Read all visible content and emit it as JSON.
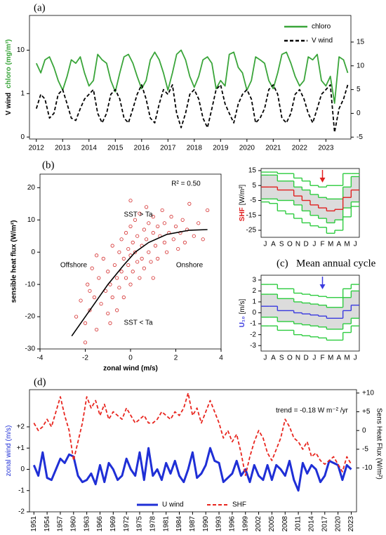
{
  "chart_data": [
    {
      "type": "line",
      "panel_label": "(a)",
      "ylabel": [
        "V wind",
        "chloro (mg/m³)"
      ],
      "ylog": true,
      "legend": "upper right",
      "x": [
        2012,
        2012.17,
        2012.33,
        2012.5,
        2012.67,
        2012.83,
        2013,
        2013.17,
        2013.33,
        2013.5,
        2013.67,
        2013.83,
        2014,
        2014.17,
        2014.33,
        2014.5,
        2014.67,
        2014.83,
        2015,
        2015.17,
        2015.33,
        2015.5,
        2015.67,
        2015.83,
        2016,
        2016.17,
        2016.33,
        2016.5,
        2016.67,
        2016.83,
        2017,
        2017.17,
        2017.33,
        2017.5,
        2017.67,
        2017.83,
        2018,
        2018.17,
        2018.33,
        2018.5,
        2018.67,
        2018.83,
        2019,
        2019.17,
        2019.33,
        2019.5,
        2019.67,
        2019.83,
        2020,
        2020.17,
        2020.33,
        2020.5,
        2020.67,
        2020.83,
        2021,
        2021.17,
        2021.33,
        2021.5,
        2021.67,
        2021.83,
        2022,
        2022.17,
        2022.33,
        2022.5,
        2022.67,
        2022.83,
        2023,
        2023.17,
        2023.33,
        2023.5,
        2023.67,
        2023.83
      ],
      "xlim": [
        2011.74,
        2023.95
      ],
      "xticks": [
        2012,
        2013,
        2014,
        2015,
        2016,
        2017,
        2018,
        2019,
        2020,
        2021,
        2022,
        2023
      ],
      "ylim": [
        0.09,
        63
      ],
      "yticks": [
        {
          "value": 0.1,
          "label": "0"
        },
        1,
        10
      ],
      "y2lim": [
        -5.4,
        20.6
      ],
      "y2ticks": [
        -5,
        0,
        5,
        10,
        15
      ],
      "series": [
        {
          "name": "chloro",
          "color": "#3aa53a",
          "values": [
            5,
            3,
            6,
            7,
            4,
            2,
            1.2,
            2.5,
            6,
            5,
            7,
            3,
            1.5,
            2,
            8,
            6,
            5,
            2,
            1.1,
            3,
            7,
            8,
            5,
            2.5,
            1.3,
            2,
            6,
            9,
            6,
            3,
            1.2,
            3,
            8,
            10,
            6,
            2.5,
            1.4,
            2.5,
            6,
            7,
            5,
            1.3,
            2,
            1.5,
            8,
            9,
            4,
            3,
            1.2,
            2,
            7,
            6,
            5,
            2,
            1.3,
            3,
            8,
            9,
            5,
            2.5,
            1.5,
            2,
            7,
            6,
            8,
            2,
            1.5,
            2.5,
            0.6,
            7,
            6,
            3
          ]
        },
        {
          "name": "V wind",
          "color": "#000000",
          "dashed": true,
          "axis": "y2",
          "values": [
            1,
            4,
            3,
            -1,
            0,
            4,
            5,
            2,
            -1,
            -1.5,
            1,
            3,
            4,
            5,
            0,
            -2,
            0,
            4,
            5,
            3,
            -1,
            -2,
            1,
            4,
            6,
            3,
            -1,
            -2,
            2,
            5,
            4,
            6,
            0,
            -3,
            0,
            4,
            5,
            3,
            -1,
            -3,
            1,
            5,
            6,
            2,
            0,
            -2,
            2,
            4,
            5,
            3,
            -2,
            -1,
            1,
            5,
            6,
            4,
            -1,
            -2,
            0,
            4,
            5,
            3,
            0,
            -2,
            1,
            4,
            5,
            6,
            -4,
            1,
            3,
            6
          ]
        }
      ]
    },
    {
      "type": "scatter",
      "panel_label": "(b)",
      "xlabel": "zonal wind  (m/s)",
      "ylabel": "sensible heat flux (W/m²)",
      "annotations": [
        "R² = 0.50",
        "SST > Ta",
        "Offshore",
        "Onshore",
        "SST < Ta"
      ],
      "xlim": [
        -4,
        4
      ],
      "xticks": [
        -4,
        -2,
        0,
        2,
        4
      ],
      "ylim": [
        -30,
        24.2
      ],
      "yticks": [
        -30,
        -20,
        -10,
        0,
        10,
        20
      ],
      "color": "#d42a2a",
      "x": [
        -2.4,
        -2.2,
        -2.0,
        -1.9,
        -1.8,
        -1.7,
        -1.6,
        -1.5,
        -1.4,
        -1.3,
        -1.2,
        -1.1,
        -1.0,
        -1.0,
        -0.9,
        -0.8,
        -0.8,
        -0.7,
        -0.6,
        -0.6,
        -0.5,
        -0.5,
        -0.4,
        -0.4,
        -0.3,
        -0.3,
        -0.2,
        -0.2,
        -0.1,
        -0.1,
        0,
        0,
        0,
        0.1,
        0.1,
        0.2,
        0.2,
        0.3,
        0.3,
        0.4,
        0.4,
        0.5,
        0.5,
        0.6,
        0.6,
        0.7,
        0.7,
        0.8,
        0.8,
        0.9,
        1.0,
        1.0,
        1.1,
        1.2,
        1.2,
        1.3,
        1.4,
        1.5,
        1.5,
        1.6,
        1.7,
        1.8,
        1.9,
        2.0,
        2.1,
        2.2,
        2.3,
        2.4,
        2.5,
        2.6,
        2.8,
        3.0,
        3.2,
        3.4,
        -1.5,
        -2.0,
        -0.9,
        0.0,
        1.0,
        -1.8
      ],
      "values": [
        -20,
        -15,
        -22,
        -10,
        -18,
        -5,
        -14,
        -24,
        -8,
        -16,
        -2,
        -12,
        -19,
        -6,
        -10,
        2,
        -14,
        -4,
        -8,
        -18,
        0,
        -11,
        4,
        -6,
        -2,
        -14,
        6,
        -8,
        1,
        -4,
        8,
        -10,
        -1,
        3,
        -6,
        10,
        0,
        -3,
        5,
        -8,
        12,
        2,
        -2,
        7,
        -5,
        4,
        14,
        0,
        9,
        -3,
        6,
        11,
        2,
        8,
        -2,
        5,
        13,
        3,
        9,
        0,
        6,
        11,
        4,
        8,
        1,
        6,
        10,
        3,
        7,
        15,
        5,
        9,
        4,
        13,
        -1,
        -28,
        -22,
        16,
        -8,
        -12
      ],
      "fit": {
        "color": "#000000",
        "x": [
          -2.6,
          -1.8,
          -1.0,
          -0.3,
          0.2,
          0.8,
          1.6,
          2.6,
          3.4
        ],
        "values": [
          -26,
          -18,
          -10,
          -4,
          0,
          3,
          5.5,
          6.8,
          7
        ]
      }
    },
    {
      "type": "step",
      "ylabel": [
        "SHF",
        "[W/m²]"
      ],
      "categories": [
        "J",
        "A",
        "S",
        "O",
        "N",
        "D",
        "J",
        "F",
        "M",
        "A",
        "M",
        "J"
      ],
      "ylim": [
        -29.7,
        16.4
      ],
      "yticks": [
        -25,
        -15,
        -5,
        5,
        15
      ],
      "shade": [
        1,
        2
      ],
      "shade_color": "#dcdcdc",
      "series": [
        {
          "color": "#2ecc40",
          "values": [
            14,
            14,
            13,
            13,
            10,
            8,
            5,
            4,
            5,
            5,
            13,
            13
          ]
        },
        {
          "color": "#2ecc40",
          "values": [
            12,
            12,
            8,
            8,
            4,
            2,
            -1,
            -3,
            -4,
            -4,
            4,
            11
          ]
        },
        {
          "color": "#2ecc40",
          "values": [
            -4,
            -4,
            -5,
            -5,
            -8,
            -12,
            -15,
            -17,
            -20,
            -18,
            -10,
            -6
          ]
        },
        {
          "color": "#2ecc40",
          "values": [
            -6,
            -7,
            -12,
            -14,
            -17,
            -20,
            -22,
            -23,
            -27,
            -25,
            -16,
            -9
          ]
        },
        {
          "color": "#e02020",
          "values": [
            4,
            4,
            2,
            2,
            -2,
            -5,
            -8,
            -10,
            -12,
            -11,
            -3,
            2
          ]
        }
      ]
    },
    {
      "type": "step",
      "panel_label": "(c)",
      "title": "Mean annual cycle",
      "ylabel": [
        "U₁₀",
        "[m/s]"
      ],
      "categories": [
        "J",
        "A",
        "S",
        "O",
        "N",
        "D",
        "J",
        "F",
        "M",
        "A",
        "M",
        "J"
      ],
      "ylim": [
        -3.5,
        3.44
      ],
      "yticks": [
        -3,
        -2,
        -1,
        0,
        1,
        2,
        3
      ],
      "shade": [
        1,
        2
      ],
      "shade_color": "#dcdcdc",
      "series": [
        {
          "color": "#2ecc40",
          "values": [
            2.6,
            2.6,
            2.2,
            2.2,
            1.8,
            1.7,
            1.6,
            1.5,
            1.4,
            1.4,
            2.2,
            2.6
          ]
        },
        {
          "color": "#2ecc40",
          "values": [
            1.7,
            1.7,
            1.3,
            1.3,
            1,
            0.9,
            0.8,
            0.7,
            0.5,
            0.5,
            1.4,
            2
          ]
        },
        {
          "color": "#2ecc40",
          "values": [
            -0.4,
            -0.4,
            -0.8,
            -0.8,
            -1,
            -1.1,
            -1.2,
            -1.3,
            -1.5,
            -1.5,
            -1,
            -0.5
          ]
        },
        {
          "color": "#2ecc40",
          "values": [
            -1.2,
            -1.2,
            -1.6,
            -1.6,
            -2,
            -2.1,
            -2.2,
            -2.3,
            -2.5,
            -2.5,
            -1.8,
            -1.2
          ]
        },
        {
          "color": "#3a3adf",
          "values": [
            0.6,
            0.6,
            0.2,
            0.2,
            0,
            -0.1,
            -0.2,
            -0.3,
            -0.5,
            -0.5,
            0.2,
            0.7
          ]
        }
      ]
    },
    {
      "type": "line",
      "panel_label": "(d)",
      "ylabel": [
        "zonal wind  (m/s)"
      ],
      "y2label": "Sens Heat Flux (W/m²)",
      "annotations": [
        "trend = -0.18 W m⁻² /yr"
      ],
      "legend": "lower center",
      "rotate_xticks": true,
      "x": [
        1951,
        1952,
        1953,
        1954,
        1955,
        1956,
        1957,
        1958,
        1959,
        1960,
        1961,
        1962,
        1963,
        1964,
        1965,
        1966,
        1967,
        1968,
        1969,
        1970,
        1971,
        1972,
        1973,
        1974,
        1975,
        1976,
        1977,
        1978,
        1979,
        1980,
        1981,
        1982,
        1983,
        1984,
        1985,
        1986,
        1987,
        1988,
        1989,
        1990,
        1991,
        1992,
        1993,
        1994,
        1995,
        1996,
        1997,
        1998,
        1999,
        2000,
        2001,
        2002,
        2003,
        2004,
        2005,
        2006,
        2007,
        2008,
        2009,
        2010,
        2011,
        2012,
        2013,
        2014,
        2015,
        2016,
        2017,
        2018,
        2019,
        2020,
        2021,
        2022,
        2023
      ],
      "xlim": [
        1950,
        2024.2
      ],
      "xticks": [
        1951,
        1954,
        1957,
        1960,
        1963,
        1966,
        1969,
        1972,
        1975,
        1978,
        1981,
        1984,
        1987,
        1990,
        1993,
        1996,
        1999,
        2002,
        2005,
        2008,
        2011,
        2014,
        2017,
        2020,
        2023
      ],
      "ylim": [
        -2,
        3.75
      ],
      "yticks": [
        -2,
        -1,
        0,
        {
          "value": 1,
          "label": "+1"
        },
        {
          "value": 2,
          "label": "+2"
        }
      ],
      "y2lim": [
        -21.7,
        10.9
      ],
      "y2ticks": [
        -10,
        -5,
        0,
        {
          "value": 5,
          "label": "+5"
        },
        {
          "value": 10,
          "label": "+10"
        }
      ],
      "series": [
        {
          "name": "U wind",
          "color": "#1f2fd6",
          "width": 3,
          "values": [
            0.2,
            -0.3,
            0.8,
            -0.4,
            -0.5,
            0,
            0.5,
            0.3,
            0.7,
            0.6,
            -0.3,
            -0.6,
            -0.5,
            -0.2,
            -0.7,
            0.2,
            -0.6,
            0.3,
            0,
            -0.5,
            -0.3,
            0.5,
            0,
            -0.3,
            0.8,
            -0.5,
            1.0,
            -0.3,
            0,
            -0.5,
            0.3,
            -0.2,
            0.4,
            -0.3,
            -0.6,
            0,
            0.8,
            -0.4,
            -0.2,
            0.2,
            1.0,
            0.4,
            0.3,
            -0.6,
            -0.4,
            -0.2,
            0.4,
            -0.3,
            0,
            -0.6,
            0.2,
            -0.3,
            -0.5,
            0.2,
            -0.5,
            0.2,
            0,
            -0.3,
            0.4,
            -0.5,
            -1.0,
            0.3,
            -0.2,
            0.2,
            0,
            -0.6,
            -0.3,
            0.4,
            0.3,
            0.2,
            -0.5,
            0.2,
            0
          ]
        },
        {
          "name": "SHF",
          "color": "#e8261f",
          "dashed": true,
          "axis": "y2",
          "values": [
            2,
            0,
            1,
            3,
            1,
            5,
            9,
            4,
            0,
            -8,
            -3,
            2,
            9,
            6,
            8,
            4,
            7,
            3,
            5,
            4,
            3,
            6,
            4,
            2,
            3,
            4,
            2,
            2,
            3,
            5,
            4,
            3,
            5,
            4,
            6,
            10,
            4,
            6,
            2,
            5,
            8,
            5,
            2,
            -2,
            0,
            -3,
            -1,
            -6,
            -12,
            -7,
            -3,
            0,
            -2,
            -6,
            -8,
            -5,
            -2,
            3,
            1,
            -2,
            -3,
            -5,
            -3,
            -7,
            -6,
            -8,
            -9,
            -8,
            -7,
            -9,
            -11,
            -7,
            -9
          ]
        }
      ]
    }
  ]
}
